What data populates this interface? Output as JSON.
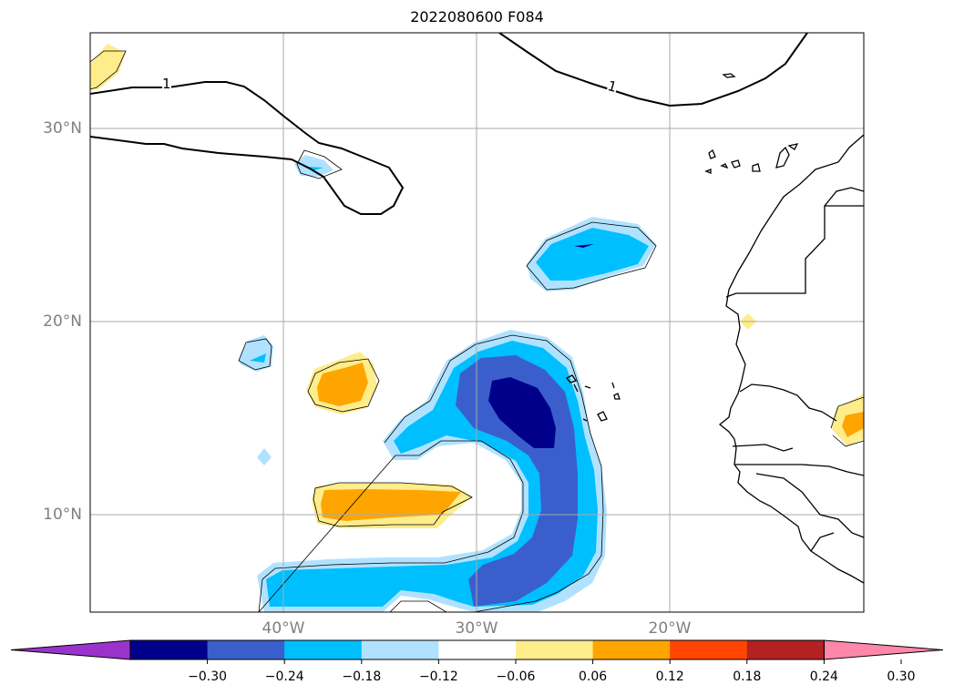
{
  "title": "2022080600 F084",
  "map": {
    "lat_ticks": [
      {
        "value": 30,
        "label": "30°N"
      },
      {
        "value": 20,
        "label": "20°N"
      },
      {
        "value": 10,
        "label": "10°N"
      }
    ],
    "lon_ticks": [
      {
        "value": -40,
        "label": "40°W"
      },
      {
        "value": -30,
        "label": "30°W"
      },
      {
        "value": -20,
        "label": "20°W"
      }
    ],
    "extent": {
      "lon": [
        -50,
        -10
      ],
      "lat": [
        5,
        35
      ]
    },
    "contour_labels": [
      "1",
      "1"
    ],
    "grid": true
  },
  "colorbar": {
    "ticks": [
      "−0.30",
      "−0.24",
      "−0.18",
      "−0.12",
      "−0.06",
      "0.06",
      "0.12",
      "0.18",
      "0.24",
      "0.30"
    ],
    "colors": [
      "#9933cc",
      "#00008b",
      "#3a5fcd",
      "#00bfff",
      "#b0e2ff",
      "#ffffff",
      "#ffec8b",
      "#ffa500",
      "#ff4500",
      "#b22222",
      "#ff88aa"
    ],
    "extend": "both"
  },
  "colors": {
    "neg_strong": "#00008b",
    "neg_mid": "#3a5fcd",
    "neg_light": "#00bfff",
    "neg_pale": "#b0e2ff",
    "pos_pale": "#ffec8b",
    "pos_mid": "#ffa500"
  }
}
